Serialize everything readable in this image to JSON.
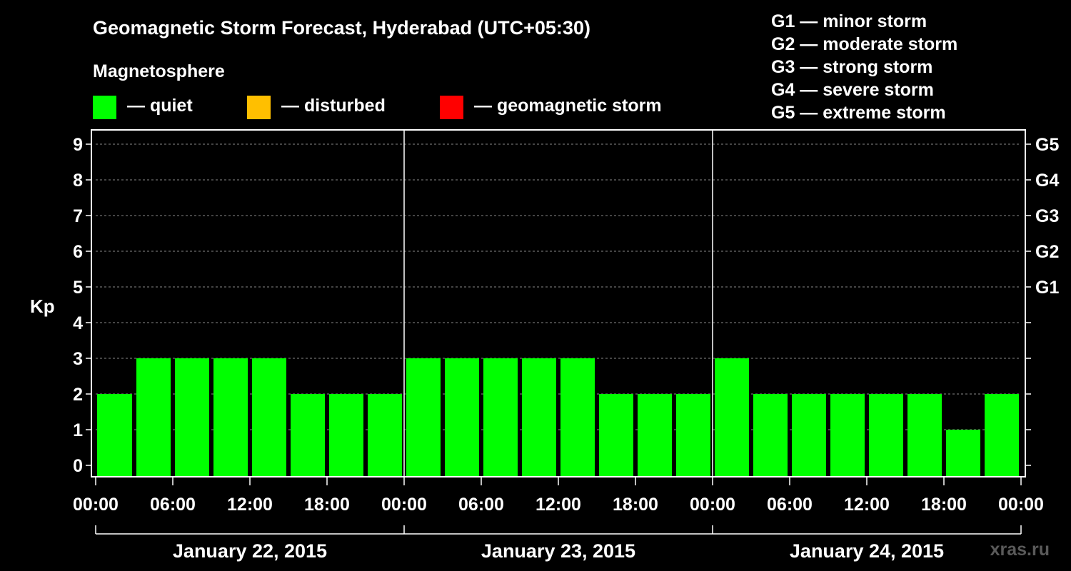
{
  "title": "Geomagnetic Storm Forecast, Hyderabad (UTC+05:30)",
  "magnetosphere_label": "Magnetosphere",
  "legend": [
    {
      "label": "— quiet",
      "color": "#00ff00"
    },
    {
      "label": "— disturbed",
      "color": "#ffbf00"
    },
    {
      "label": "— geomagnetic storm",
      "color": "#ff0000"
    }
  ],
  "storm_scale": [
    "G1 — minor storm",
    "G2 — moderate storm",
    "G3 — strong storm",
    "G4 — severe storm",
    "G5 — extreme storm"
  ],
  "watermark": "xras.ru",
  "chart_data": {
    "type": "bar",
    "ylabel": "Kp",
    "ylim": [
      0,
      9
    ],
    "yticks": [
      0,
      1,
      2,
      3,
      4,
      5,
      6,
      7,
      8,
      9
    ],
    "right_axis_labels": [
      {
        "kp": 5,
        "label": "G1"
      },
      {
        "kp": 6,
        "label": "G2"
      },
      {
        "kp": 7,
        "label": "G3"
      },
      {
        "kp": 8,
        "label": "G4"
      },
      {
        "kp": 9,
        "label": "G5"
      }
    ],
    "xtick_labels": [
      "00:00",
      "06:00",
      "12:00",
      "18:00",
      "00:00",
      "06:00",
      "12:00",
      "18:00",
      "00:00",
      "06:00",
      "12:00",
      "18:00",
      "00:00"
    ],
    "days": [
      "January 22, 2015",
      "January 23, 2015",
      "January 24, 2015"
    ],
    "interval_hours": 3,
    "values": [
      2,
      3,
      3,
      3,
      3,
      2,
      2,
      2,
      3,
      3,
      3,
      3,
      3,
      2,
      2,
      2,
      3,
      2,
      2,
      2,
      2,
      2,
      1,
      2
    ],
    "bar_color": "#00ff00",
    "grid": true
  }
}
